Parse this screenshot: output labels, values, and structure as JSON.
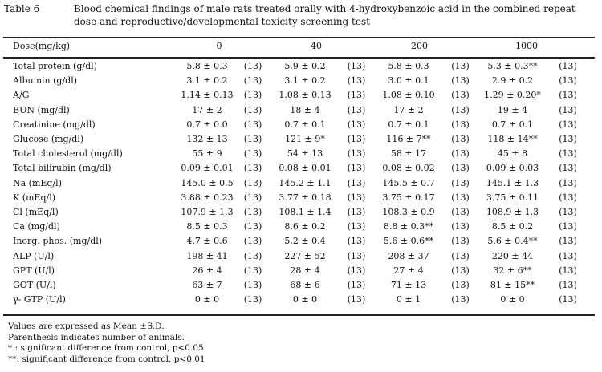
{
  "title": {
    "number": "Table 6",
    "text": "Blood chemical findings of male rats treated orally with 4-hydroxybenzoic acid in the combined repeat dose and reproductive/developmental toxicity screening test"
  },
  "header": {
    "label": "Dose(mg/kg)",
    "doses": [
      "0",
      "40",
      "200",
      "1000"
    ]
  },
  "rows": [
    {
      "label": "Total protein (g/dl)",
      "cells": [
        [
          "5.8 ± 0.3",
          "(13)"
        ],
        [
          "5.9 ± 0.2",
          "(13)"
        ],
        [
          "5.8 ± 0.3",
          "(13)"
        ],
        [
          "5.3 ± 0.3**",
          "(13)"
        ]
      ]
    },
    {
      "label": "Albumin (g/dl)",
      "cells": [
        [
          "3.1 ± 0.2",
          "(13)"
        ],
        [
          "3.1 ± 0.2",
          "(13)"
        ],
        [
          "3.0 ± 0.1",
          "(13)"
        ],
        [
          "2.9 ± 0.2",
          "(13)"
        ]
      ]
    },
    {
      "label": "A/G",
      "cells": [
        [
          "1.14 ± 0.13",
          "(13)"
        ],
        [
          "1.08 ± 0.13",
          "(13)"
        ],
        [
          "1.08 ± 0.10",
          "(13)"
        ],
        [
          "1.29 ± 0.20*",
          "(13)"
        ]
      ]
    },
    {
      "label": "BUN (mg/dl)",
      "cells": [
        [
          "17 ± 2",
          "(13)"
        ],
        [
          "18 ± 4",
          "(13)"
        ],
        [
          "17 ± 2",
          "(13)"
        ],
        [
          "19 ± 4",
          "(13)"
        ]
      ]
    },
    {
      "label": "Creatinine (mg/dl)",
      "cells": [
        [
          "0.7 ± 0.0",
          "(13)"
        ],
        [
          "0.7 ± 0.1",
          "(13)"
        ],
        [
          "0.7 ± 0.1",
          "(13)"
        ],
        [
          "0.7 ± 0.1",
          "(13)"
        ]
      ]
    },
    {
      "label": "Glucose (mg/dl)",
      "cells": [
        [
          "132 ± 13",
          "(13)"
        ],
        [
          "121 ± 9*",
          "(13)"
        ],
        [
          "116 ± 7**",
          "(13)"
        ],
        [
          "118 ± 14**",
          "(13)"
        ]
      ]
    },
    {
      "label": "Total cholesterol (mg/dl)",
      "cells": [
        [
          "55 ± 9",
          "(13)"
        ],
        [
          "54 ± 13",
          "(13)"
        ],
        [
          "58 ± 17",
          "(13)"
        ],
        [
          "45 ± 8",
          "(13)"
        ]
      ]
    },
    {
      "label": "Total bilirubin (mg/dl)",
      "cells": [
        [
          "0.09 ± 0.01",
          "(13)"
        ],
        [
          "0.08 ± 0.01",
          "(13)"
        ],
        [
          "0.08 ± 0.02",
          "(13)"
        ],
        [
          "0.09 ± 0.03",
          "(13)"
        ]
      ]
    },
    {
      "label": "Na (mEq/l)",
      "cells": [
        [
          "145.0 ± 0.5",
          "(13)"
        ],
        [
          "145.2 ± 1.1",
          "(13)"
        ],
        [
          "145.5 ± 0.7",
          "(13)"
        ],
        [
          "145.1 ± 1.3",
          "(13)"
        ]
      ]
    },
    {
      "label": "K (mEq/l)",
      "cells": [
        [
          "3.88 ± 0.23",
          "(13)"
        ],
        [
          "3.77 ± 0.18",
          "(13)"
        ],
        [
          "3.75 ± 0.17",
          "(13)"
        ],
        [
          "3.75 ± 0.11",
          "(13)"
        ]
      ]
    },
    {
      "label": "Cl (mEq/l)",
      "cells": [
        [
          "107.9 ± 1.3",
          "(13)"
        ],
        [
          "108.1 ± 1.4",
          "(13)"
        ],
        [
          "108.3 ± 0.9",
          "(13)"
        ],
        [
          "108.9 ± 1.3",
          "(13)"
        ]
      ]
    },
    {
      "label": "Ca (mg/dl)",
      "cells": [
        [
          "8.5 ± 0.3",
          "(13)"
        ],
        [
          "8.6 ± 0.2",
          "(13)"
        ],
        [
          "8.8 ± 0.3**",
          "(13)"
        ],
        [
          "8.5 ± 0.2",
          "(13)"
        ]
      ]
    },
    {
      "label": "Inorg. phos. (mg/dl)",
      "cells": [
        [
          "4.7 ± 0.6",
          "(13)"
        ],
        [
          "5.2 ± 0.4",
          "(13)"
        ],
        [
          "5.6 ± 0.6**",
          "(13)"
        ],
        [
          "5.6 ± 0.4**",
          "(13)"
        ]
      ]
    },
    {
      "label": "ALP (U/l)",
      "cells": [
        [
          "198 ± 41",
          "(13)"
        ],
        [
          "227 ± 52",
          "(13)"
        ],
        [
          "208 ± 37",
          "(13)"
        ],
        [
          "220 ± 44",
          "(13)"
        ]
      ]
    },
    {
      "label": "GPT (U/l)",
      "cells": [
        [
          "26 ± 4",
          "(13)"
        ],
        [
          "28 ± 4",
          "(13)"
        ],
        [
          "27 ± 4",
          "(13)"
        ],
        [
          "32 ± 6**",
          "(13)"
        ]
      ]
    },
    {
      "label": "GOT (U/l)",
      "cells": [
        [
          "63 ± 7",
          "(13)"
        ],
        [
          "68 ± 6",
          "(13)"
        ],
        [
          "71 ± 13",
          "(13)"
        ],
        [
          "81 ± 15**",
          "(13)"
        ]
      ]
    },
    {
      "label": "γ- GTP (U/l)",
      "cells": [
        [
          "0 ± 0",
          "(13)"
        ],
        [
          "0 ± 0",
          "(13)"
        ],
        [
          "0 ± 1",
          "(13)"
        ],
        [
          "0 ± 0",
          "(13)"
        ]
      ]
    }
  ],
  "footnotes": [
    "Values are expressed as Mean  ±S.D.",
    "Parenthesis indicates number of animals.",
    "* : significant difference from control, p<0.05",
    "**: significant difference from control, p<0.01"
  ]
}
